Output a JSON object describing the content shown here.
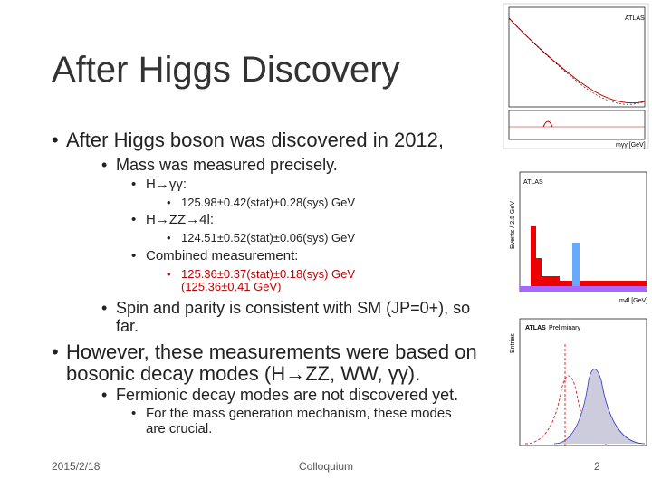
{
  "slide": {
    "title": "After Higgs Discovery",
    "bullets": [
      {
        "level": 1,
        "text": "After Higgs boson was discovered in 2012,"
      },
      {
        "level": 2,
        "text": "Mass was measured precisely."
      },
      {
        "level": 3,
        "text": "H→γγ:"
      },
      {
        "level": 4,
        "text": "125.98±0.42(stat)±0.28(sys) GeV"
      },
      {
        "level": 3,
        "text": "H→ZZ→4l:"
      },
      {
        "level": 4,
        "text": "124.51±0.52(stat)±0.06(sys) GeV"
      },
      {
        "level": 3,
        "text": "Combined measurement:"
      },
      {
        "level": 4,
        "text": "125.36±0.37(stat)±0.18(sys) GeV",
        "sub": "(125.36±0.41 GeV)",
        "highlight": true
      },
      {
        "level": 2,
        "text": "Spin and parity is consistent with SM (JP=0+), so far."
      },
      {
        "level": 1,
        "text": "However, these measurements were based on bosonic decay modes (H→ZZ, WW, γγ)."
      },
      {
        "level": 2,
        "text": "Fermionic decay modes are not discovered yet."
      },
      {
        "level": 3,
        "text": "For the mass generation mechanism, these modes are crucial."
      }
    ],
    "figures": [
      {
        "experiment": "ATLAS",
        "xlabel": "mγγ [GeV]"
      },
      {
        "experiment": "ATLAS",
        "ylabel": "Events / 2.5 GeV",
        "xlabel": "m4l [GeV]"
      },
      {
        "experiment": "ATLAS",
        "tag": "Preliminary",
        "ylabel": "Entries"
      }
    ],
    "footer": {
      "date": "2015/2/18",
      "center": "Colloquium",
      "page": "2"
    }
  }
}
